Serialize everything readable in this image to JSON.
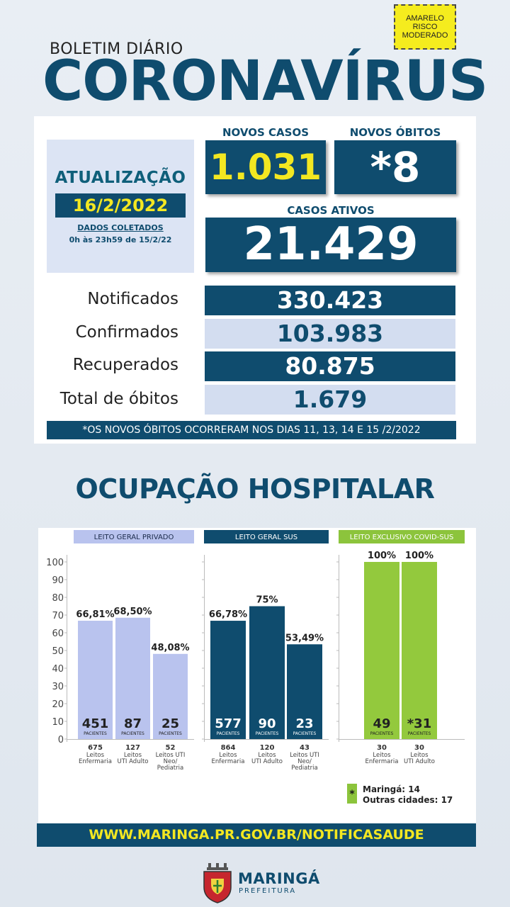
{
  "risk_badge": "AMARELO RISCO MODERADO",
  "header": {
    "subtitle": "BOLETIM DIÁRIO",
    "title": "CORONAVÍRUS"
  },
  "update": {
    "title": "ATUALIZAÇÃO",
    "date": "16/2/2022",
    "collected_label": "DADOS COLETADOS",
    "collected_range": "0h às 23h59 de 15/2/22"
  },
  "new_cases": {
    "label": "NOVOS CASOS",
    "value": "1.031"
  },
  "new_deaths": {
    "label": "NOVOS ÓBITOS",
    "value": "*8"
  },
  "active_cases": {
    "label": "CASOS ATIVOS",
    "value": "21.429"
  },
  "stats": [
    {
      "label": "Notificados",
      "value": "330.423"
    },
    {
      "label": "Confirmados",
      "value": "103.983"
    },
    {
      "label": "Recuperados",
      "value": "80.875"
    },
    {
      "label": "Total de óbitos",
      "value": "1.679"
    }
  ],
  "footnote": "*OS NOVOS  ÓBITOS OCORRERAM NOS DIAS 11, 13, 14 E 15 /2/2022",
  "hospital_title": "OCUPAÇÃO HOSPITALAR",
  "chart_data": {
    "type": "bar",
    "ylim": [
      0,
      100
    ],
    "yticks": [
      "100",
      "90",
      "80",
      "70",
      "60",
      "50",
      "40",
      "30",
      "20",
      "10",
      "0"
    ],
    "patients_label": "PACIENTES",
    "groups": [
      {
        "name": "LEITO GERAL PRIVADO",
        "header_color": "#b9c3ee",
        "header_text_color": "#1a2a4a",
        "bar_color": "#b9c3ee",
        "bars": [
          {
            "pct": 66.81,
            "pct_label": "66,81%",
            "patients": "451",
            "beds": "675",
            "bed_type": "Leitos Enfermaria"
          },
          {
            "pct": 68.5,
            "pct_label": "68,50%",
            "patients": "87",
            "beds": "127",
            "bed_type": "Leitos UTI Adulto"
          },
          {
            "pct": 48.08,
            "pct_label": "48,08%",
            "patients": "25",
            "beds": "52",
            "bed_type": "Leitos UTI Neo/ Pediatria"
          }
        ]
      },
      {
        "name": "LEITO GERAL SUS",
        "header_color": "#0f4c6e",
        "header_text_color": "#ffffff",
        "bar_color": "#0f4c6e",
        "bars": [
          {
            "pct": 66.78,
            "pct_label": "66,78%",
            "patients": "577",
            "beds": "864",
            "bed_type": "Leitos Enfermaria"
          },
          {
            "pct": 75,
            "pct_label": "75%",
            "patients": "90",
            "beds": "120",
            "bed_type": "Leitos UTI Adulto"
          },
          {
            "pct": 53.49,
            "pct_label": "53,49%",
            "patients": "23",
            "beds": "43",
            "bed_type": "Leitos UTI Neo/ Pediatria"
          }
        ]
      },
      {
        "name": "LEITO EXCLUSIVO COVID-SUS",
        "header_color": "#8cc43c",
        "header_text_color": "#ffffff",
        "bar_color": "#93c93d",
        "bars": [
          {
            "pct": 100,
            "pct_label": "100%",
            "patients": "49",
            "beds": "30",
            "bed_type": "Leitos Enfermaria"
          },
          {
            "pct": 100,
            "pct_label": "100%",
            "patients": "*31",
            "beds": "30",
            "bed_type": "Leitos UTI Adulto"
          }
        ]
      }
    ],
    "legend": {
      "marker": "*",
      "line1": "Maringá: 14",
      "line2": "Outras cidades: 17"
    }
  },
  "url": "WWW.MARINGA.PR.GOV.BR/NOTIFICASAUDE",
  "logo": {
    "name": "MARINGÁ",
    "sub": "PREFEITURA"
  }
}
